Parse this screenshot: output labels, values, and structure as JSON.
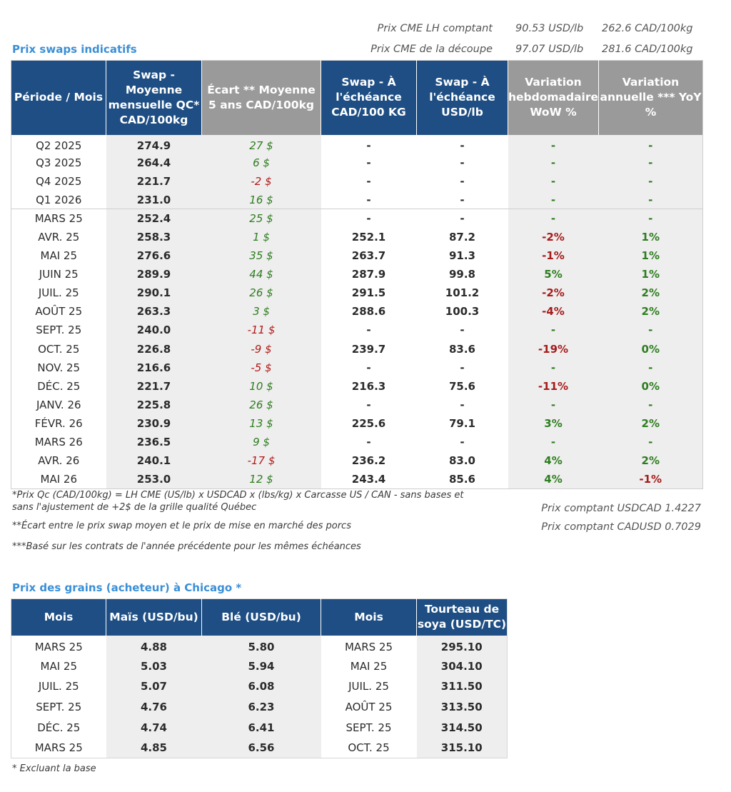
{
  "cme": {
    "rows": [
      {
        "label": "Prix CME LH comptant",
        "usd": "90.53 USD/lb",
        "cad": "262.6 CAD/100kg"
      },
      {
        "label": "Prix CME de la découpe",
        "usd": "97.07 USD/lb",
        "cad": "281.6 CAD/100kg"
      }
    ]
  },
  "swaps": {
    "title": "Prix swaps indicatifs",
    "headers": [
      "Période / Mois",
      "Swap - Moyenne mensuelle QC* CAD/100kg",
      "Écart ** Moyenne 5 ans CAD/100kg",
      "Swap - À l'échéance CAD/100 KG",
      "Swap - À l'échéance USD/lb",
      "Variation hebdomadaire WoW %",
      "Variation annuelle *** YoY %"
    ],
    "rows": [
      [
        "Q2 2025",
        "274.9",
        "27 $",
        "-",
        "-",
        "-",
        "-"
      ],
      [
        "Q3 2025",
        "264.4",
        "6 $",
        "-",
        "-",
        "-",
        "-"
      ],
      [
        "Q4 2025",
        "221.7",
        "-2 $",
        "-",
        "-",
        "-",
        "-"
      ],
      [
        "Q1 2026",
        "231.0",
        "16 $",
        "-",
        "-",
        "-",
        "-"
      ],
      [
        "MARS 25",
        "252.4",
        "25 $",
        "-",
        "-",
        "-",
        "-"
      ],
      [
        "AVR. 25",
        "258.3",
        "1 $",
        "252.1",
        "87.2",
        "-2%",
        "1%"
      ],
      [
        "MAI 25",
        "276.6",
        "35 $",
        "263.7",
        "91.3",
        "-1%",
        "1%"
      ],
      [
        "JUIN 25",
        "289.9",
        "44 $",
        "287.9",
        "99.8",
        "5%",
        "1%"
      ],
      [
        "JUIL. 25",
        "290.1",
        "26 $",
        "291.5",
        "101.2",
        "-2%",
        "2%"
      ],
      [
        "AOÛT 25",
        "263.3",
        "3 $",
        "288.6",
        "100.3",
        "-4%",
        "2%"
      ],
      [
        "SEPT. 25",
        "240.0",
        "-11 $",
        "-",
        "-",
        "-",
        "-"
      ],
      [
        "OCT. 25",
        "226.8",
        "-9 $",
        "239.7",
        "83.6",
        "-19%",
        "0%"
      ],
      [
        "NOV. 25",
        "216.6",
        "-5 $",
        "-",
        "-",
        "-",
        "-"
      ],
      [
        "DÉC. 25",
        "221.7",
        "10 $",
        "216.3",
        "75.6",
        "-11%",
        "0%"
      ],
      [
        "JANV. 26",
        "225.8",
        "26 $",
        "-",
        "-",
        "-",
        "-"
      ],
      [
        "FÉVR. 26",
        "230.9",
        "13 $",
        "225.6",
        "79.1",
        "3%",
        "2%"
      ],
      [
        "MARS 26",
        "236.5",
        "9 $",
        "-",
        "-",
        "-",
        "-"
      ],
      [
        "AVR. 26",
        "240.1",
        "-17 $",
        "236.2",
        "83.0",
        "4%",
        "2%"
      ],
      [
        "MAI 26",
        "253.0",
        "12 $",
        "243.4",
        "85.6",
        "4%",
        "-1%"
      ]
    ]
  },
  "notes": {
    "n1_line1": "*Prix Qc (CAD/100kg) = LH CME (US/lb) x USDCAD x (lbs/kg) x Carcasse US / CAN - sans bases et",
    "n1_line2": "sans l'ajustement de +2$ de la grille qualité Québec",
    "n2": "**Écart entre le prix swap moyen et le prix de mise en marché des porcs",
    "n3": "***Basé sur les contrats de l'année précédente pour les mêmes échéances",
    "rate_usdcad": "Prix comptant USDCAD 1.4227",
    "rate_cadusd": "Prix comptant CADUSD 0.7029"
  },
  "grains": {
    "title": "Prix des grains (acheteur) à Chicago *",
    "headers": [
      "Mois",
      "Maïs (USD/bu)",
      "Blé (USD/bu)",
      "Mois",
      "Tourteau de soya (USD/TC)"
    ],
    "rows": [
      [
        "MARS 25",
        "4.88",
        "5.80",
        "MARS 25",
        "295.10"
      ],
      [
        "MAI 25",
        "5.03",
        "5.94",
        "MAI 25",
        "304.10"
      ],
      [
        "JUIL. 25",
        "5.07",
        "6.08",
        "JUIL. 25",
        "311.50"
      ],
      [
        "SEPT. 25",
        "4.76",
        "6.23",
        "AOÛT 25",
        "313.50"
      ],
      [
        "DÉC. 25",
        "4.74",
        "6.41",
        "SEPT. 25",
        "314.50"
      ],
      [
        "MARS 25",
        "4.85",
        "6.56",
        "OCT. 25",
        "315.10"
      ]
    ],
    "footnote": "* Excluant la base"
  },
  "colors": {
    "header_blue": "#1e4e83",
    "header_gray": "#9a9a9a",
    "title_blue": "#3a8fd6",
    "positive_green": "#2e7d1f",
    "negative_red": "#b31a1a"
  }
}
